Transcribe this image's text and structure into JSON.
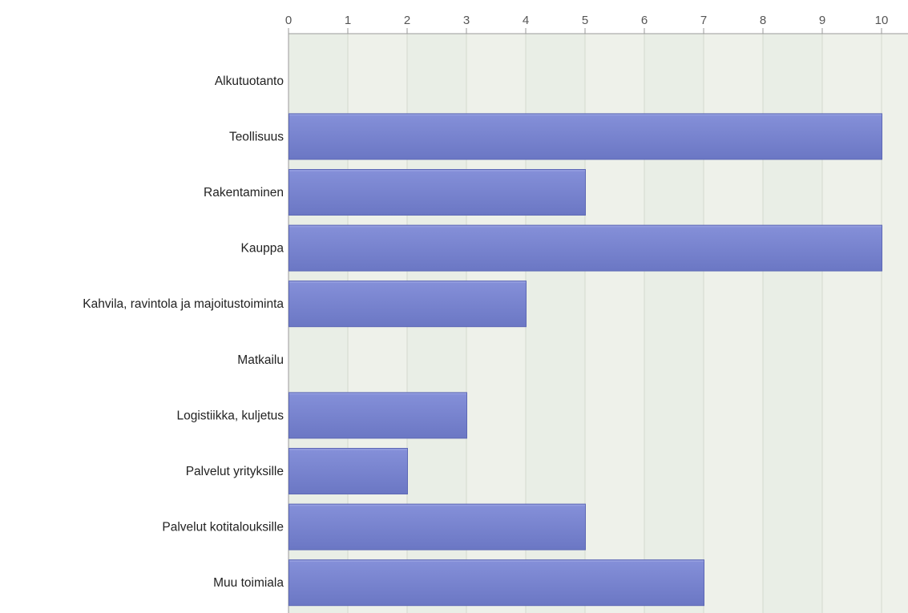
{
  "chart_data": {
    "type": "bar",
    "orientation": "horizontal",
    "categories": [
      "Alkutuotanto",
      "Teollisuus",
      "Rakentaminen",
      "Kauppa",
      "Kahvila, ravintola ja majoitustoiminta",
      "Matkailu",
      "Logistiikka, kuljetus",
      "Palvelut yrityksille",
      "Palvelut kotitalouksille",
      "Muu toimiala"
    ],
    "values": [
      0,
      10,
      5,
      10,
      4,
      0,
      3,
      2,
      5,
      7
    ],
    "xlim": [
      0,
      10
    ],
    "x_ticks": [
      "0",
      "1",
      "2",
      "3",
      "4",
      "5",
      "6",
      "7",
      "8",
      "9",
      "10"
    ],
    "x_axis_position": "top",
    "grid": true,
    "legend": "none",
    "title": "",
    "xlabel": "",
    "ylabel": "",
    "colors": {
      "bar_top": "#8590d9",
      "bar_bottom": "#6b77c4",
      "bar_edge": "#5d68b5",
      "plot_bg": "#eef1ea",
      "plot_bg_alt": "#e6ebe1",
      "grid": "#d4d9cf",
      "axis": "#9a9a9a"
    }
  }
}
